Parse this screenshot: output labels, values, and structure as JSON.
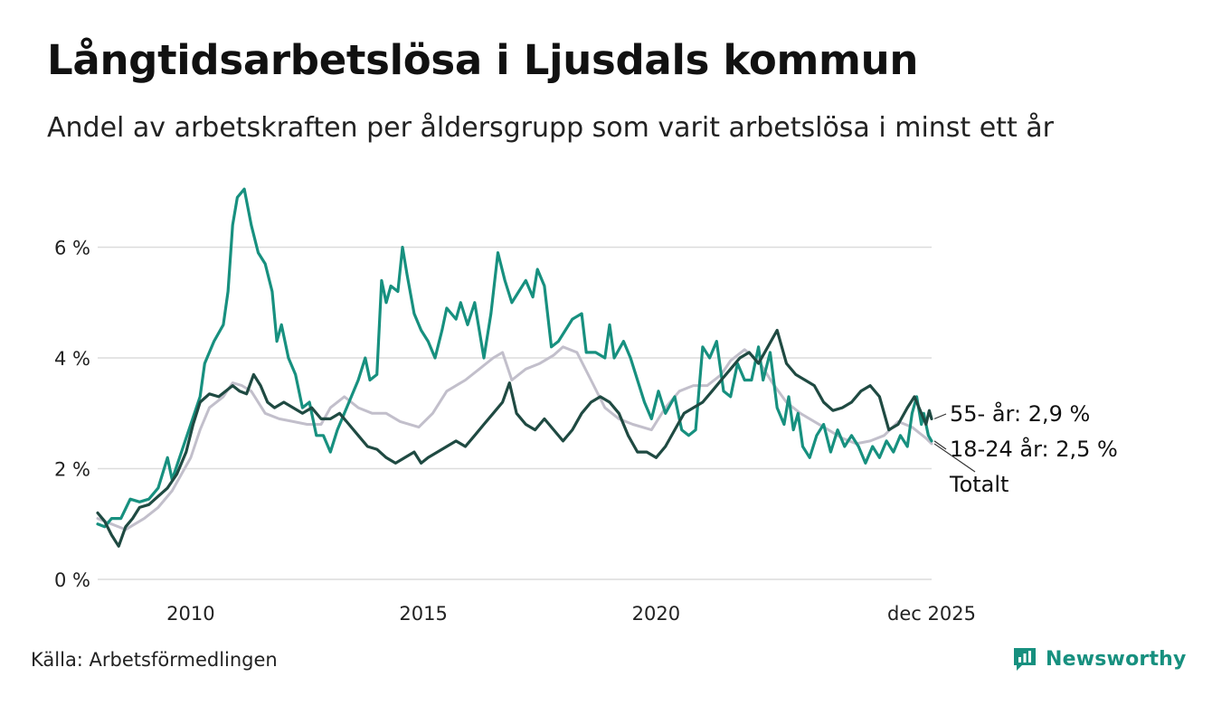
{
  "title": "Långtidsarbetslösa i Ljusdals kommun",
  "subtitle": "Andel av arbetskraften per åldersgrupp som varit arbetslösa i minst ett år",
  "source": "Källa: Arbetsförmedlingen",
  "brand": "Newsworthy",
  "colors": {
    "young": "#17907f",
    "old": "#1f4a42",
    "total": "#c2bfcb",
    "grid": "#dcdcdc",
    "brand": "#17907f"
  },
  "chart_data": {
    "type": "line",
    "title": "Långtidsarbetslösa i Ljusdals kommun",
    "xlabel": "",
    "ylabel": "",
    "xlim": [
      2008.0,
      2025.92
    ],
    "ylim": [
      0,
      7.2
    ],
    "yticks": [
      {
        "value": 0,
        "label": "0 %"
      },
      {
        "value": 2,
        "label": "2 %"
      },
      {
        "value": 4,
        "label": "4 %"
      },
      {
        "value": 6,
        "label": "6 %"
      }
    ],
    "xticks": [
      {
        "value": 2010,
        "label": "2010"
      },
      {
        "value": 2015,
        "label": "2015"
      },
      {
        "value": 2020,
        "label": "2020"
      },
      {
        "value": 2025.92,
        "label": "dec 2025"
      }
    ],
    "series": [
      {
        "name": "Totalt",
        "key": "total",
        "label": "Totalt",
        "points": [
          [
            2008.0,
            1.1
          ],
          [
            2008.3,
            1.0
          ],
          [
            2008.6,
            0.9
          ],
          [
            2009.0,
            1.1
          ],
          [
            2009.3,
            1.3
          ],
          [
            2009.6,
            1.6
          ],
          [
            2010.0,
            2.2
          ],
          [
            2010.2,
            2.7
          ],
          [
            2010.4,
            3.1
          ],
          [
            2010.7,
            3.3
          ],
          [
            2010.9,
            3.55
          ],
          [
            2011.1,
            3.5
          ],
          [
            2011.3,
            3.4
          ],
          [
            2011.6,
            3.0
          ],
          [
            2011.9,
            2.9
          ],
          [
            2012.2,
            2.85
          ],
          [
            2012.5,
            2.8
          ],
          [
            2012.8,
            2.8
          ],
          [
            2013.0,
            3.1
          ],
          [
            2013.3,
            3.3
          ],
          [
            2013.6,
            3.1
          ],
          [
            2013.9,
            3.0
          ],
          [
            2014.2,
            3.0
          ],
          [
            2014.5,
            2.85
          ],
          [
            2014.9,
            2.75
          ],
          [
            2015.2,
            3.0
          ],
          [
            2015.5,
            3.4
          ],
          [
            2015.9,
            3.6
          ],
          [
            2016.2,
            3.8
          ],
          [
            2016.5,
            4.0
          ],
          [
            2016.7,
            4.1
          ],
          [
            2016.9,
            3.6
          ],
          [
            2017.2,
            3.8
          ],
          [
            2017.5,
            3.9
          ],
          [
            2017.8,
            4.05
          ],
          [
            2018.0,
            4.2
          ],
          [
            2018.3,
            4.1
          ],
          [
            2018.6,
            3.6
          ],
          [
            2018.9,
            3.1
          ],
          [
            2019.2,
            2.9
          ],
          [
            2019.5,
            2.8
          ],
          [
            2019.9,
            2.7
          ],
          [
            2020.2,
            3.1
          ],
          [
            2020.5,
            3.4
          ],
          [
            2020.8,
            3.5
          ],
          [
            2021.1,
            3.5
          ],
          [
            2021.4,
            3.7
          ],
          [
            2021.6,
            3.95
          ],
          [
            2021.9,
            4.15
          ],
          [
            2022.2,
            3.95
          ],
          [
            2022.5,
            3.55
          ],
          [
            2022.8,
            3.2
          ],
          [
            2023.1,
            3.0
          ],
          [
            2023.4,
            2.85
          ],
          [
            2023.7,
            2.7
          ],
          [
            2024.0,
            2.55
          ],
          [
            2024.3,
            2.45
          ],
          [
            2024.6,
            2.5
          ],
          [
            2024.9,
            2.6
          ],
          [
            2025.2,
            2.85
          ],
          [
            2025.5,
            2.75
          ],
          [
            2025.8,
            2.55
          ],
          [
            2025.92,
            2.45
          ]
        ]
      },
      {
        "name": "18-24 år",
        "key": "young",
        "label": "18-24 år: 2,5 %",
        "points": [
          [
            2008.0,
            1.0
          ],
          [
            2008.15,
            0.95
          ],
          [
            2008.3,
            1.1
          ],
          [
            2008.5,
            1.1
          ],
          [
            2008.7,
            1.45
          ],
          [
            2008.9,
            1.4
          ],
          [
            2009.1,
            1.45
          ],
          [
            2009.3,
            1.65
          ],
          [
            2009.5,
            2.2
          ],
          [
            2009.6,
            1.8
          ],
          [
            2009.8,
            2.3
          ],
          [
            2010.0,
            2.8
          ],
          [
            2010.2,
            3.3
          ],
          [
            2010.3,
            3.9
          ],
          [
            2010.5,
            4.3
          ],
          [
            2010.7,
            4.6
          ],
          [
            2010.8,
            5.2
          ],
          [
            2010.9,
            6.4
          ],
          [
            2011.0,
            6.9
          ],
          [
            2011.15,
            7.05
          ],
          [
            2011.3,
            6.4
          ],
          [
            2011.45,
            5.9
          ],
          [
            2011.6,
            5.7
          ],
          [
            2011.75,
            5.2
          ],
          [
            2011.85,
            4.3
          ],
          [
            2011.95,
            4.6
          ],
          [
            2012.1,
            4.0
          ],
          [
            2012.25,
            3.7
          ],
          [
            2012.4,
            3.1
          ],
          [
            2012.55,
            3.2
          ],
          [
            2012.7,
            2.6
          ],
          [
            2012.85,
            2.6
          ],
          [
            2013.0,
            2.3
          ],
          [
            2013.15,
            2.7
          ],
          [
            2013.3,
            3.0
          ],
          [
            2013.45,
            3.3
          ],
          [
            2013.6,
            3.6
          ],
          [
            2013.75,
            4.0
          ],
          [
            2013.85,
            3.6
          ],
          [
            2014.0,
            3.7
          ],
          [
            2014.1,
            5.4
          ],
          [
            2014.2,
            5.0
          ],
          [
            2014.3,
            5.3
          ],
          [
            2014.45,
            5.2
          ],
          [
            2014.55,
            6.0
          ],
          [
            2014.65,
            5.5
          ],
          [
            2014.8,
            4.8
          ],
          [
            2014.95,
            4.5
          ],
          [
            2015.1,
            4.3
          ],
          [
            2015.25,
            4.0
          ],
          [
            2015.4,
            4.5
          ],
          [
            2015.5,
            4.9
          ],
          [
            2015.7,
            4.7
          ],
          [
            2015.8,
            5.0
          ],
          [
            2015.95,
            4.6
          ],
          [
            2016.1,
            5.0
          ],
          [
            2016.2,
            4.5
          ],
          [
            2016.3,
            4.0
          ],
          [
            2016.45,
            4.8
          ],
          [
            2016.6,
            5.9
          ],
          [
            2016.75,
            5.4
          ],
          [
            2016.9,
            5.0
          ],
          [
            2017.05,
            5.2
          ],
          [
            2017.2,
            5.4
          ],
          [
            2017.35,
            5.1
          ],
          [
            2017.45,
            5.6
          ],
          [
            2017.6,
            5.3
          ],
          [
            2017.75,
            4.2
          ],
          [
            2017.9,
            4.3
          ],
          [
            2018.05,
            4.5
          ],
          [
            2018.2,
            4.7
          ],
          [
            2018.4,
            4.8
          ],
          [
            2018.5,
            4.1
          ],
          [
            2018.7,
            4.1
          ],
          [
            2018.9,
            4.0
          ],
          [
            2019.0,
            4.6
          ],
          [
            2019.1,
            4.0
          ],
          [
            2019.3,
            4.3
          ],
          [
            2019.45,
            4.0
          ],
          [
            2019.6,
            3.6
          ],
          [
            2019.75,
            3.2
          ],
          [
            2019.9,
            2.9
          ],
          [
            2020.05,
            3.4
          ],
          [
            2020.2,
            3.0
          ],
          [
            2020.4,
            3.3
          ],
          [
            2020.55,
            2.7
          ],
          [
            2020.7,
            2.6
          ],
          [
            2020.85,
            2.7
          ],
          [
            2021.0,
            4.2
          ],
          [
            2021.15,
            4.0
          ],
          [
            2021.3,
            4.3
          ],
          [
            2021.45,
            3.4
          ],
          [
            2021.6,
            3.3
          ],
          [
            2021.75,
            3.9
          ],
          [
            2021.9,
            3.6
          ],
          [
            2022.05,
            3.6
          ],
          [
            2022.2,
            4.2
          ],
          [
            2022.3,
            3.6
          ],
          [
            2022.45,
            4.1
          ],
          [
            2022.6,
            3.1
          ],
          [
            2022.75,
            2.8
          ],
          [
            2022.85,
            3.3
          ],
          [
            2022.95,
            2.7
          ],
          [
            2023.05,
            3.0
          ],
          [
            2023.15,
            2.4
          ],
          [
            2023.3,
            2.2
          ],
          [
            2023.45,
            2.6
          ],
          [
            2023.6,
            2.8
          ],
          [
            2023.75,
            2.3
          ],
          [
            2023.9,
            2.7
          ],
          [
            2024.05,
            2.4
          ],
          [
            2024.2,
            2.6
          ],
          [
            2024.35,
            2.4
          ],
          [
            2024.5,
            2.1
          ],
          [
            2024.65,
            2.4
          ],
          [
            2024.8,
            2.2
          ],
          [
            2024.95,
            2.5
          ],
          [
            2025.1,
            2.3
          ],
          [
            2025.25,
            2.6
          ],
          [
            2025.4,
            2.4
          ],
          [
            2025.5,
            3.0
          ],
          [
            2025.6,
            3.3
          ],
          [
            2025.7,
            2.8
          ],
          [
            2025.75,
            3.0
          ],
          [
            2025.85,
            2.6
          ],
          [
            2025.92,
            2.5
          ]
        ]
      },
      {
        "name": "55- år",
        "key": "old",
        "label": "55- år: 2,9 %",
        "points": [
          [
            2008.0,
            1.2
          ],
          [
            2008.15,
            1.05
          ],
          [
            2008.3,
            0.8
          ],
          [
            2008.45,
            0.6
          ],
          [
            2008.6,
            0.95
          ],
          [
            2008.75,
            1.1
          ],
          [
            2008.9,
            1.3
          ],
          [
            2009.1,
            1.35
          ],
          [
            2009.3,
            1.5
          ],
          [
            2009.5,
            1.65
          ],
          [
            2009.7,
            1.9
          ],
          [
            2009.9,
            2.3
          ],
          [
            2010.05,
            2.8
          ],
          [
            2010.2,
            3.2
          ],
          [
            2010.4,
            3.35
          ],
          [
            2010.6,
            3.3
          ],
          [
            2010.75,
            3.4
          ],
          [
            2010.9,
            3.5
          ],
          [
            2011.05,
            3.4
          ],
          [
            2011.2,
            3.35
          ],
          [
            2011.35,
            3.7
          ],
          [
            2011.5,
            3.5
          ],
          [
            2011.65,
            3.2
          ],
          [
            2011.8,
            3.1
          ],
          [
            2012.0,
            3.2
          ],
          [
            2012.2,
            3.1
          ],
          [
            2012.4,
            3.0
          ],
          [
            2012.6,
            3.1
          ],
          [
            2012.8,
            2.9
          ],
          [
            2013.0,
            2.9
          ],
          [
            2013.2,
            3.0
          ],
          [
            2013.4,
            2.8
          ],
          [
            2013.6,
            2.6
          ],
          [
            2013.8,
            2.4
          ],
          [
            2014.0,
            2.35
          ],
          [
            2014.2,
            2.2
          ],
          [
            2014.4,
            2.1
          ],
          [
            2014.6,
            2.2
          ],
          [
            2014.8,
            2.3
          ],
          [
            2014.95,
            2.1
          ],
          [
            2015.1,
            2.2
          ],
          [
            2015.3,
            2.3
          ],
          [
            2015.5,
            2.4
          ],
          [
            2015.7,
            2.5
          ],
          [
            2015.9,
            2.4
          ],
          [
            2016.1,
            2.6
          ],
          [
            2016.3,
            2.8
          ],
          [
            2016.5,
            3.0
          ],
          [
            2016.7,
            3.2
          ],
          [
            2016.85,
            3.55
          ],
          [
            2017.0,
            3.0
          ],
          [
            2017.2,
            2.8
          ],
          [
            2017.4,
            2.7
          ],
          [
            2017.6,
            2.9
          ],
          [
            2017.8,
            2.7
          ],
          [
            2018.0,
            2.5
          ],
          [
            2018.2,
            2.7
          ],
          [
            2018.4,
            3.0
          ],
          [
            2018.6,
            3.2
          ],
          [
            2018.8,
            3.3
          ],
          [
            2019.0,
            3.2
          ],
          [
            2019.2,
            3.0
          ],
          [
            2019.4,
            2.6
          ],
          [
            2019.6,
            2.3
          ],
          [
            2019.8,
            2.3
          ],
          [
            2020.0,
            2.2
          ],
          [
            2020.2,
            2.4
          ],
          [
            2020.4,
            2.7
          ],
          [
            2020.6,
            3.0
          ],
          [
            2020.8,
            3.1
          ],
          [
            2021.0,
            3.2
          ],
          [
            2021.2,
            3.4
          ],
          [
            2021.4,
            3.6
          ],
          [
            2021.6,
            3.8
          ],
          [
            2021.8,
            4.0
          ],
          [
            2022.0,
            4.1
          ],
          [
            2022.2,
            3.9
          ],
          [
            2022.4,
            4.2
          ],
          [
            2022.6,
            4.5
          ],
          [
            2022.8,
            3.9
          ],
          [
            2023.0,
            3.7
          ],
          [
            2023.2,
            3.6
          ],
          [
            2023.4,
            3.5
          ],
          [
            2023.6,
            3.2
          ],
          [
            2023.8,
            3.05
          ],
          [
            2024.0,
            3.1
          ],
          [
            2024.2,
            3.2
          ],
          [
            2024.4,
            3.4
          ],
          [
            2024.6,
            3.5
          ],
          [
            2024.8,
            3.3
          ],
          [
            2025.0,
            2.7
          ],
          [
            2025.2,
            2.8
          ],
          [
            2025.4,
            3.1
          ],
          [
            2025.55,
            3.3
          ],
          [
            2025.7,
            3.0
          ],
          [
            2025.8,
            2.8
          ],
          [
            2025.87,
            3.05
          ],
          [
            2025.92,
            2.9
          ]
        ]
      }
    ]
  }
}
